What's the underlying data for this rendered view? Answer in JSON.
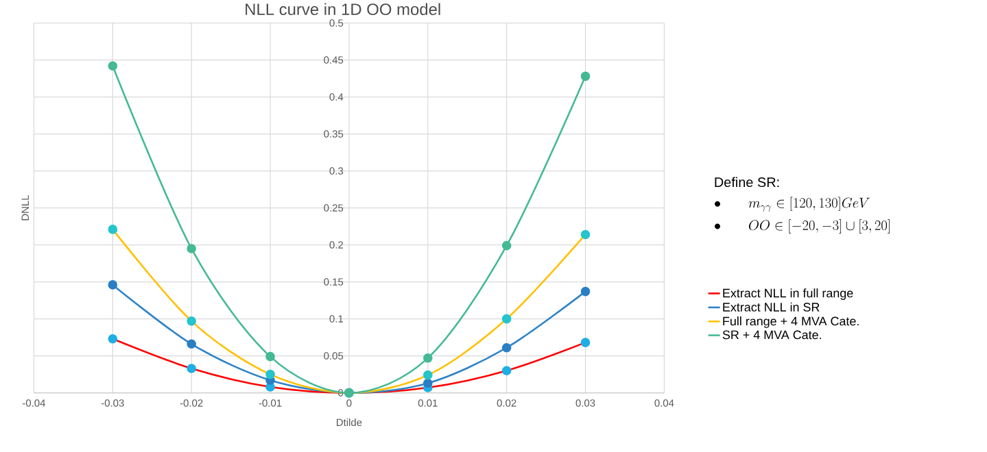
{
  "chart_data": {
    "type": "line",
    "title": "NLL curve in 1D OO model",
    "xlabel": "Dtilde",
    "ylabel": "DNLL",
    "x": [
      -0.03,
      -0.02,
      -0.01,
      0,
      0.01,
      0.02,
      0.03
    ],
    "series": [
      {
        "name": "Extract NLL in full range",
        "color": "#ff0000",
        "colors": [
          "#1eaee6",
          "#1eaee6",
          "#1eaee6",
          "#1eaee6",
          "#1eaee6",
          "#1eaee6",
          "#1eaee6"
        ],
        "values": [
          0.073,
          0.033,
          0.008,
          0,
          0.007,
          0.03,
          0.068
        ]
      },
      {
        "name": "Extract NLL in SR",
        "color": "#2e83c6",
        "colors": [
          "#2a7fc4",
          "#2a7fc4",
          "#2a7fc4",
          "#2a7fc4",
          "#2a7fc4",
          "#2a7fc4",
          "#2a7fc4"
        ],
        "values": [
          0.146,
          0.066,
          0.017,
          0,
          0.013,
          0.061,
          0.137
        ]
      },
      {
        "name": "Full range + 4 MVA Cate.",
        "color": "#ffc000",
        "colors": [
          "#26c4cc",
          "#26c4cc",
          "#26c4cc",
          "#26c4cc",
          "#26c4cc",
          "#26c4cc",
          "#26c4cc"
        ],
        "values": [
          0.221,
          0.097,
          0.025,
          0,
          0.024,
          0.1,
          0.214
        ]
      },
      {
        "name": "SR + 4 MVA Cate.",
        "color": "#44b997",
        "colors": [
          "#45b994",
          "#45b994",
          "#45b994",
          "#45b994",
          "#45b994",
          "#45b994",
          "#45b994"
        ],
        "values": [
          0.442,
          0.195,
          0.049,
          0,
          0.047,
          0.199,
          0.428
        ]
      }
    ],
    "xlim": [
      -0.04,
      0.04
    ],
    "xticks": [
      -0.04,
      -0.03,
      -0.02,
      -0.01,
      0,
      0.01,
      0.02,
      0.03,
      0.04
    ],
    "ylim": [
      0,
      0.5
    ],
    "yticks": [
      0,
      0.05,
      0.1,
      0.15,
      0.2,
      0.25,
      0.3,
      0.35,
      0.4,
      0.45,
      0.5
    ],
    "grid": true,
    "legend": "right",
    "marker": "circle",
    "line_style": "solid",
    "annotations": [
      "Define SR:",
      "\\bullet\\qquad m_{\\gamma\\gamma} \\in [120,130] GeV",
      "\\bullet\\qquad OO \\in [-20,-3] \\cup [3,20]"
    ]
  }
}
